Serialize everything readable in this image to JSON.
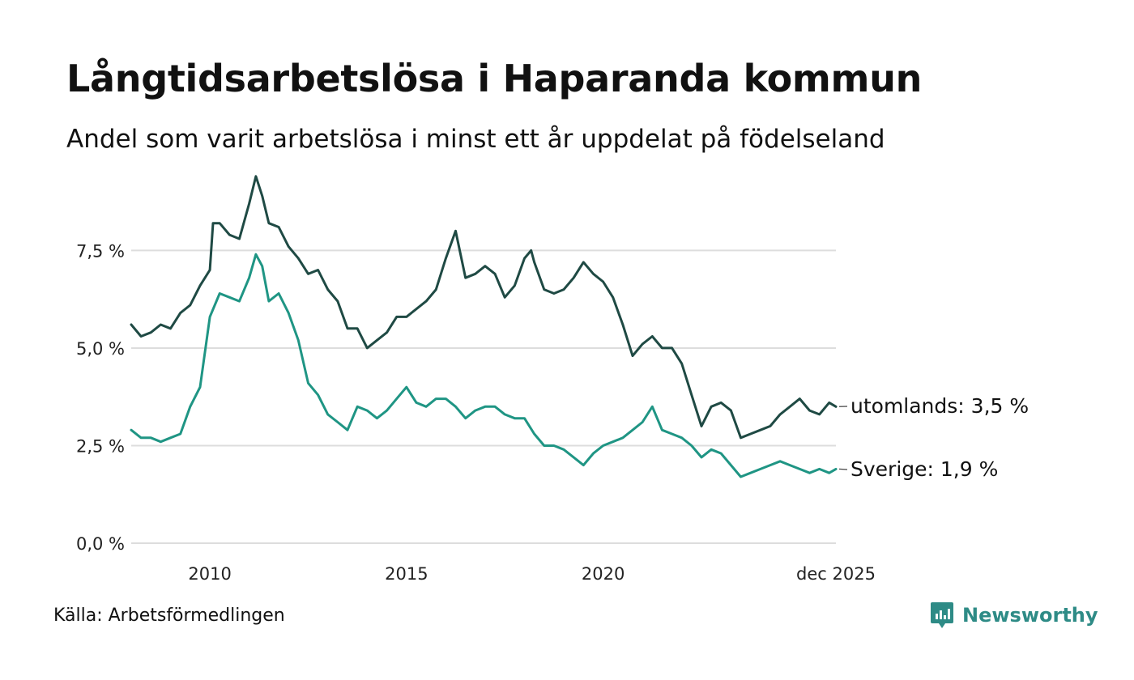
{
  "title": "Långtidsarbetslösa i Haparanda kommun",
  "subtitle": "Andel som varit arbetslösa i minst ett år uppdelat på födelseland",
  "source": "Källa: Arbetsförmedlingen",
  "brand": {
    "name": "Newsworthy",
    "logo_icon": "bar-chart-icon",
    "color": "#2e8b86"
  },
  "chart_data": {
    "type": "line",
    "title": "Långtidsarbetslösa i Haparanda kommun",
    "subtitle": "Andel som varit arbetslösa i minst ett år uppdelat på födelseland",
    "xlabel": "",
    "ylabel": "",
    "xlim": [
      2008.0,
      2025.92
    ],
    "ylim": [
      0,
      9.5
    ],
    "grid": true,
    "y_ticks": [
      {
        "value": 0.0,
        "label": "0,0 %"
      },
      {
        "value": 2.5,
        "label": "2,5 %"
      },
      {
        "value": 5.0,
        "label": "5,0 %"
      },
      {
        "value": 7.5,
        "label": "7,5 %"
      }
    ],
    "x_ticks": [
      {
        "value": 2010,
        "label": "2010"
      },
      {
        "value": 2015,
        "label": "2015"
      },
      {
        "value": 2020,
        "label": "2020"
      },
      {
        "value": 2025.92,
        "label": "dec 2025"
      }
    ],
    "series": [
      {
        "name": "utomlands",
        "end_label": "utomlands: 3,5 %",
        "color": "#1f4a44",
        "points": [
          [
            2008.0,
            5.6
          ],
          [
            2008.25,
            5.3
          ],
          [
            2008.5,
            5.4
          ],
          [
            2008.75,
            5.6
          ],
          [
            2009.0,
            5.5
          ],
          [
            2009.25,
            5.9
          ],
          [
            2009.5,
            6.1
          ],
          [
            2009.75,
            6.6
          ],
          [
            2010.0,
            7.0
          ],
          [
            2010.08,
            8.2
          ],
          [
            2010.25,
            8.2
          ],
          [
            2010.5,
            7.9
          ],
          [
            2010.75,
            7.8
          ],
          [
            2011.0,
            8.7
          ],
          [
            2011.17,
            9.4
          ],
          [
            2011.33,
            8.9
          ],
          [
            2011.5,
            8.2
          ],
          [
            2011.75,
            8.1
          ],
          [
            2012.0,
            7.6
          ],
          [
            2012.25,
            7.3
          ],
          [
            2012.5,
            6.9
          ],
          [
            2012.75,
            7.0
          ],
          [
            2013.0,
            6.5
          ],
          [
            2013.25,
            6.2
          ],
          [
            2013.5,
            5.5
          ],
          [
            2013.75,
            5.5
          ],
          [
            2014.0,
            5.0
          ],
          [
            2014.25,
            5.2
          ],
          [
            2014.5,
            5.4
          ],
          [
            2014.75,
            5.8
          ],
          [
            2015.0,
            5.8
          ],
          [
            2015.25,
            6.0
          ],
          [
            2015.5,
            6.2
          ],
          [
            2015.75,
            6.5
          ],
          [
            2016.0,
            7.3
          ],
          [
            2016.25,
            8.0
          ],
          [
            2016.5,
            6.8
          ],
          [
            2016.75,
            6.9
          ],
          [
            2017.0,
            7.1
          ],
          [
            2017.25,
            6.9
          ],
          [
            2017.5,
            6.3
          ],
          [
            2017.75,
            6.6
          ],
          [
            2018.0,
            7.3
          ],
          [
            2018.17,
            7.5
          ],
          [
            2018.25,
            7.2
          ],
          [
            2018.5,
            6.5
          ],
          [
            2018.75,
            6.4
          ],
          [
            2019.0,
            6.5
          ],
          [
            2019.25,
            6.8
          ],
          [
            2019.5,
            7.2
          ],
          [
            2019.75,
            6.9
          ],
          [
            2020.0,
            6.7
          ],
          [
            2020.25,
            6.3
          ],
          [
            2020.5,
            5.6
          ],
          [
            2020.75,
            4.8
          ],
          [
            2021.0,
            5.1
          ],
          [
            2021.25,
            5.3
          ],
          [
            2021.5,
            5.0
          ],
          [
            2021.75,
            5.0
          ],
          [
            2022.0,
            4.6
          ],
          [
            2022.25,
            3.8
          ],
          [
            2022.5,
            3.0
          ],
          [
            2022.75,
            3.5
          ],
          [
            2023.0,
            3.6
          ],
          [
            2023.25,
            3.4
          ],
          [
            2023.5,
            2.7
          ],
          [
            2023.75,
            2.8
          ],
          [
            2024.0,
            2.9
          ],
          [
            2024.25,
            3.0
          ],
          [
            2024.5,
            3.3
          ],
          [
            2024.75,
            3.5
          ],
          [
            2025.0,
            3.7
          ],
          [
            2025.25,
            3.4
          ],
          [
            2025.5,
            3.3
          ],
          [
            2025.75,
            3.6
          ],
          [
            2025.92,
            3.5
          ]
        ]
      },
      {
        "name": "Sverige",
        "end_label": "Sverige: 1,9 %",
        "color": "#1f9584",
        "points": [
          [
            2008.0,
            2.9
          ],
          [
            2008.25,
            2.7
          ],
          [
            2008.5,
            2.7
          ],
          [
            2008.75,
            2.6
          ],
          [
            2009.0,
            2.7
          ],
          [
            2009.25,
            2.8
          ],
          [
            2009.5,
            3.5
          ],
          [
            2009.75,
            4.0
          ],
          [
            2010.0,
            5.8
          ],
          [
            2010.25,
            6.4
          ],
          [
            2010.5,
            6.3
          ],
          [
            2010.75,
            6.2
          ],
          [
            2011.0,
            6.8
          ],
          [
            2011.17,
            7.4
          ],
          [
            2011.33,
            7.1
          ],
          [
            2011.5,
            6.2
          ],
          [
            2011.75,
            6.4
          ],
          [
            2012.0,
            5.9
          ],
          [
            2012.25,
            5.2
          ],
          [
            2012.5,
            4.1
          ],
          [
            2012.75,
            3.8
          ],
          [
            2013.0,
            3.3
          ],
          [
            2013.25,
            3.1
          ],
          [
            2013.5,
            2.9
          ],
          [
            2013.75,
            3.5
          ],
          [
            2014.0,
            3.4
          ],
          [
            2014.25,
            3.2
          ],
          [
            2014.5,
            3.4
          ],
          [
            2014.75,
            3.7
          ],
          [
            2015.0,
            4.0
          ],
          [
            2015.25,
            3.6
          ],
          [
            2015.5,
            3.5
          ],
          [
            2015.75,
            3.7
          ],
          [
            2016.0,
            3.7
          ],
          [
            2016.25,
            3.5
          ],
          [
            2016.5,
            3.2
          ],
          [
            2016.75,
            3.4
          ],
          [
            2017.0,
            3.5
          ],
          [
            2017.25,
            3.5
          ],
          [
            2017.5,
            3.3
          ],
          [
            2017.75,
            3.2
          ],
          [
            2018.0,
            3.2
          ],
          [
            2018.25,
            2.8
          ],
          [
            2018.5,
            2.5
          ],
          [
            2018.75,
            2.5
          ],
          [
            2019.0,
            2.4
          ],
          [
            2019.25,
            2.2
          ],
          [
            2019.5,
            2.0
          ],
          [
            2019.75,
            2.3
          ],
          [
            2020.0,
            2.5
          ],
          [
            2020.25,
            2.6
          ],
          [
            2020.5,
            2.7
          ],
          [
            2020.75,
            2.9
          ],
          [
            2021.0,
            3.1
          ],
          [
            2021.25,
            3.5
          ],
          [
            2021.5,
            2.9
          ],
          [
            2021.75,
            2.8
          ],
          [
            2022.0,
            2.7
          ],
          [
            2022.25,
            2.5
          ],
          [
            2022.5,
            2.2
          ],
          [
            2022.75,
            2.4
          ],
          [
            2023.0,
            2.3
          ],
          [
            2023.25,
            2.0
          ],
          [
            2023.5,
            1.7
          ],
          [
            2023.75,
            1.8
          ],
          [
            2024.0,
            1.9
          ],
          [
            2024.25,
            2.0
          ],
          [
            2024.5,
            2.1
          ],
          [
            2024.75,
            2.0
          ],
          [
            2025.0,
            1.9
          ],
          [
            2025.25,
            1.8
          ],
          [
            2025.5,
            1.9
          ],
          [
            2025.75,
            1.8
          ],
          [
            2025.92,
            1.9
          ]
        ]
      }
    ]
  }
}
